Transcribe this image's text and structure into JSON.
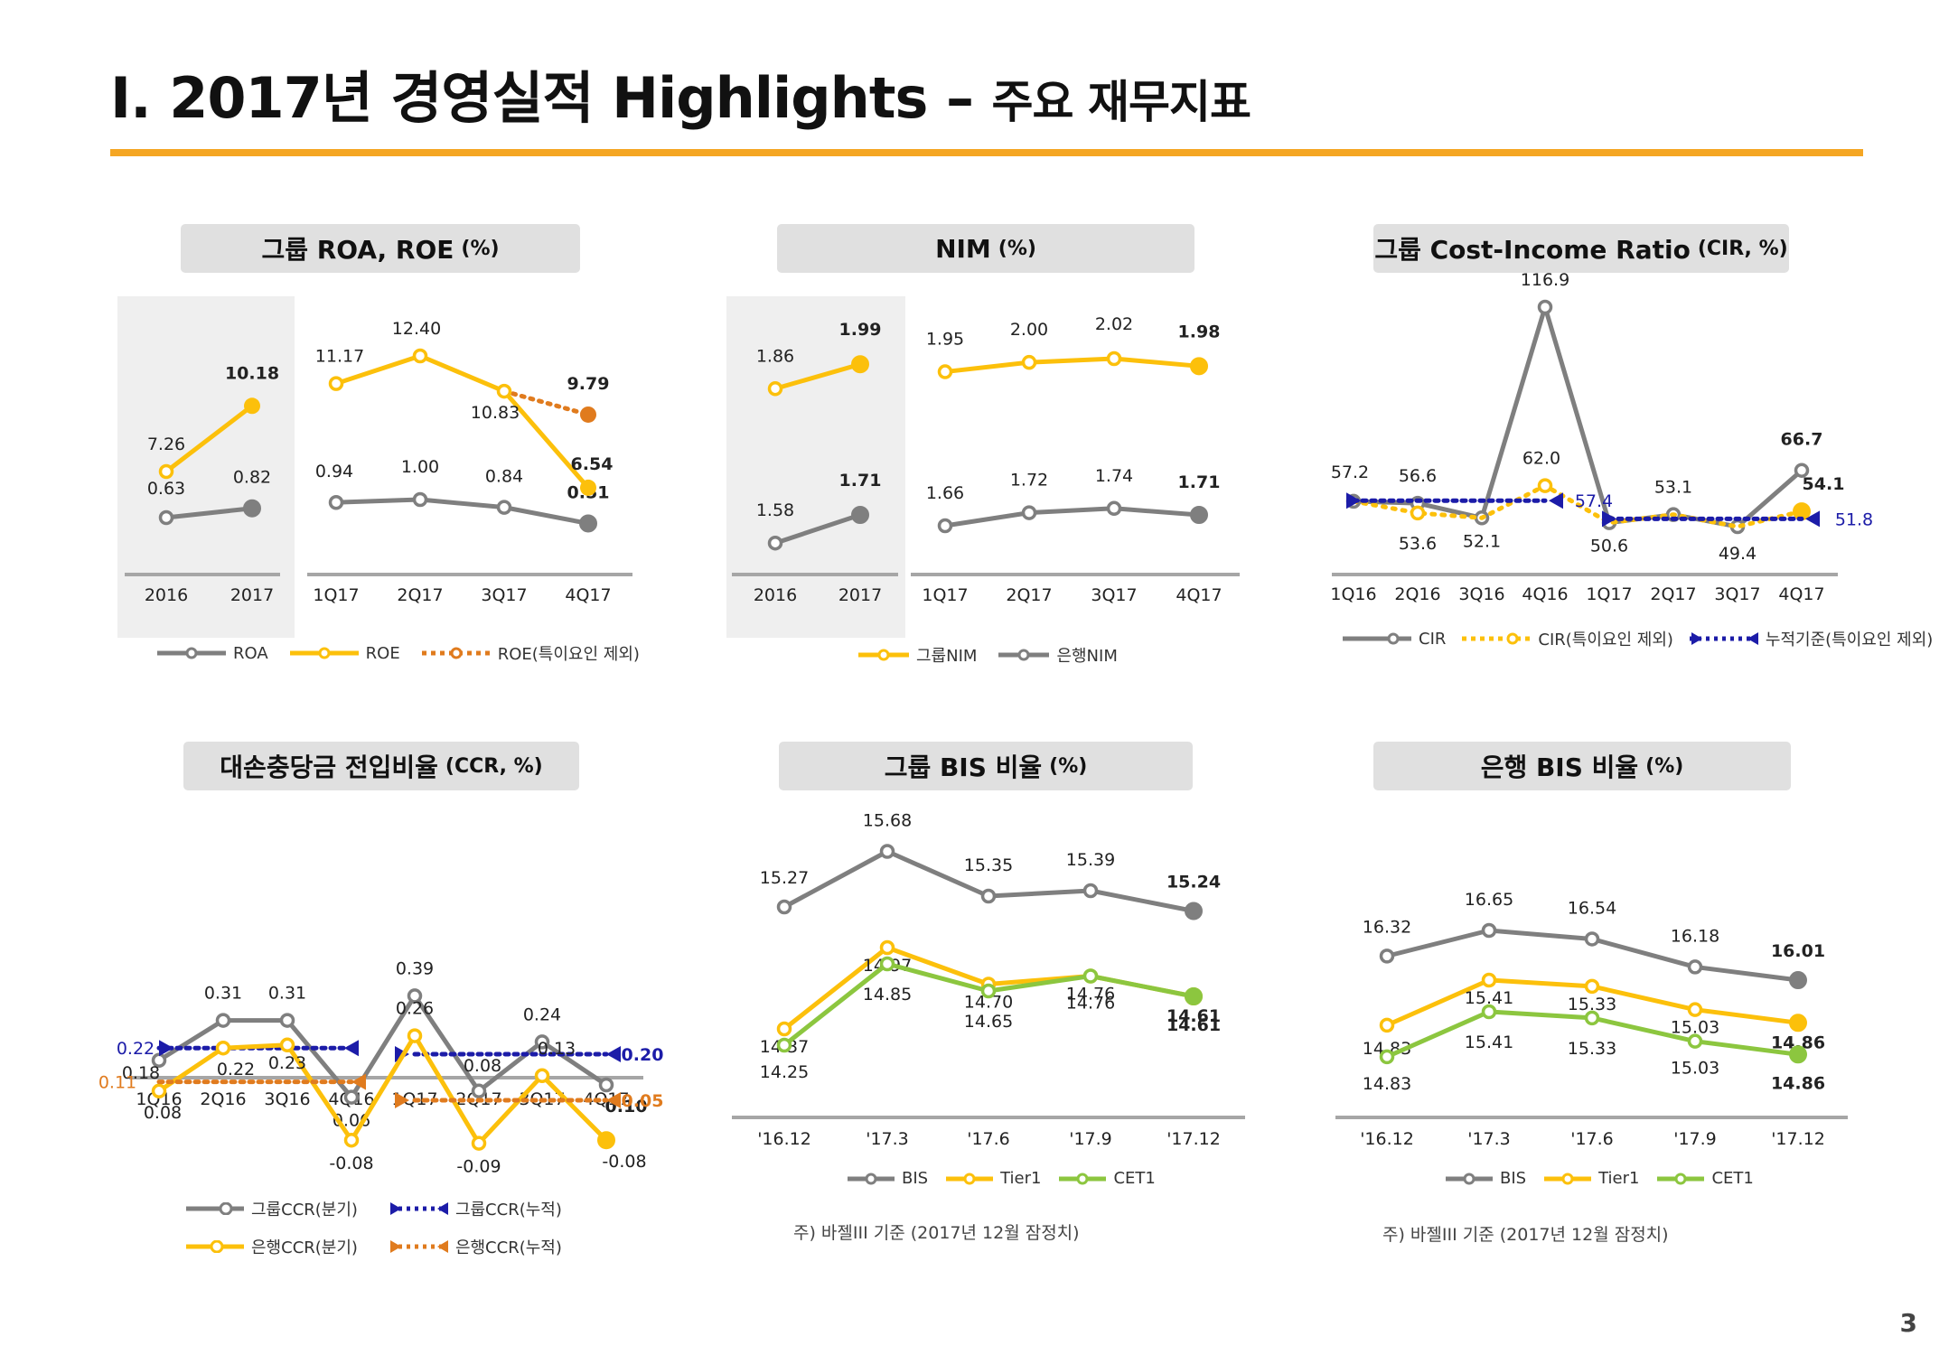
{
  "page": {
    "title_main": "Ⅰ. 2017년 경영실적 Highlights –",
    "title_sub": "주요 재무지표",
    "page_number": "3"
  },
  "colors": {
    "gray": "#7f7f7f",
    "yellow": "#fcc00b",
    "orange": "#e07b1e",
    "blue": "#1c1ca8",
    "green": "#8cc63f",
    "accent": "#f5a623"
  },
  "panels": {
    "roa_roe": {
      "title": "그룹 ROA, ROE",
      "unit": "(%)"
    },
    "nim": {
      "title": "NIM",
      "unit": "(%)"
    },
    "cir": {
      "title": "그룹 Cost-Income Ratio",
      "unit": "(CIR, %)"
    },
    "ccr": {
      "title": "대손충당금 전입비율",
      "unit": "(CCR, %)"
    },
    "group_bis": {
      "title": "그룹 BIS 비율",
      "unit": "(%)"
    },
    "bank_bis": {
      "title": "은행 BIS 비율",
      "unit": "(%)"
    }
  },
  "legends": {
    "roa_roe": [
      "ROA",
      "ROE",
      "ROE(특이요인 제외)"
    ],
    "nim": [
      "그룹NIM",
      "은행NIM"
    ],
    "cir": [
      "CIR",
      "CIR(특이요인 제외)",
      "누적기준(특이요인 제외)"
    ],
    "ccr": [
      "그룹CCR(분기)",
      "그룹CCR(누적)",
      "은행CCR(분기)",
      "은행CCR(누적)"
    ],
    "bis": [
      "BIS",
      "Tier1",
      "CET1"
    ]
  },
  "notes": {
    "group_bis": "주) 바젤III 기준 (2017년 12월 잠정치)",
    "bank_bis": "주) 바젤III 기준 (2017년 12월 잠정치)"
  },
  "chart_data": [
    {
      "id": "roa_roe",
      "type": "line",
      "categories": [
        "2016",
        "2017",
        "1Q17",
        "2Q17",
        "3Q17",
        "4Q17"
      ],
      "series": [
        {
          "name": "ROA",
          "values": [
            0.63,
            0.82,
            0.94,
            1.0,
            0.84,
            0.51
          ],
          "labels": [
            "0.63",
            "0.82",
            "0.94",
            "1.00",
            "0.84",
            "0.51"
          ]
        },
        {
          "name": "ROE",
          "values": [
            7.26,
            10.18,
            11.17,
            12.4,
            10.83,
            6.54
          ],
          "labels": [
            "7.26",
            "10.18",
            "11.17",
            "12.40",
            "10.83",
            "6.54"
          ]
        },
        {
          "name": "ROE(특이요인 제외)",
          "values": [
            null,
            null,
            null,
            null,
            10.83,
            9.79
          ],
          "labels": [
            "",
            "",
            "",
            "",
            "",
            "9.79"
          ]
        }
      ]
    },
    {
      "id": "nim",
      "type": "line",
      "categories": [
        "2016",
        "2017",
        "1Q17",
        "2Q17",
        "3Q17",
        "4Q17"
      ],
      "series": [
        {
          "name": "그룹NIM",
          "values": [
            1.86,
            1.99,
            1.95,
            2.0,
            2.02,
            1.98
          ],
          "labels": [
            "1.86",
            "1.99",
            "1.95",
            "2.00",
            "2.02",
            "1.98"
          ]
        },
        {
          "name": "은행NIM",
          "values": [
            1.58,
            1.71,
            1.66,
            1.72,
            1.74,
            1.71
          ],
          "labels": [
            "1.58",
            "1.71",
            "1.66",
            "1.72",
            "1.74",
            "1.71"
          ]
        }
      ]
    },
    {
      "id": "cir",
      "type": "line",
      "categories": [
        "1Q16",
        "2Q16",
        "3Q16",
        "4Q16",
        "1Q17",
        "2Q17",
        "3Q17",
        "4Q17"
      ],
      "series": [
        {
          "name": "CIR",
          "values": [
            57.2,
            56.6,
            52.1,
            116.9,
            50.6,
            53.1,
            49.4,
            66.7
          ],
          "labels": [
            "57.2",
            "56.6",
            "52.1",
            "116.9",
            "50.6",
            "53.1",
            "49.4",
            "66.7"
          ]
        },
        {
          "name": "CIR(특이요인 제외)",
          "values": [
            57.2,
            53.6,
            52.1,
            62.0,
            50.6,
            53.1,
            49.4,
            54.1
          ],
          "labels": [
            "",
            "53.6",
            "",
            "62.0",
            "",
            "",
            "",
            "54.1"
          ]
        },
        {
          "name": "누적기준(특이요인 제외)",
          "values": [
            57.4,
            57.4,
            57.4,
            57.4,
            51.8,
            51.8,
            51.8,
            51.8
          ],
          "labels": [
            "",
            "",
            "",
            "57.4",
            "",
            "",
            "",
            "51.8"
          ]
        }
      ]
    },
    {
      "id": "ccr",
      "type": "line",
      "categories": [
        "1Q16",
        "2Q16",
        "3Q16",
        "4Q16",
        "1Q17",
        "2Q17",
        "3Q17",
        "4Q17"
      ],
      "series": [
        {
          "name": "그룹CCR(분기)",
          "values": [
            0.18,
            0.31,
            0.31,
            0.06,
            0.39,
            0.08,
            0.24,
            0.1
          ],
          "labels": [
            "0.18",
            "0.31",
            "0.31",
            "0.06",
            "0.39",
            "0.08",
            "0.24",
            "0.10"
          ]
        },
        {
          "name": "그룹CCR(누적)",
          "values": [
            0.22,
            0.22,
            0.22,
            0.22,
            0.2,
            0.2,
            0.2,
            0.2
          ],
          "labels": [
            "0.22",
            "",
            "",
            "",
            "",
            "",
            "",
            "0.20"
          ]
        },
        {
          "name": "은행CCR(분기)",
          "values": [
            0.08,
            0.22,
            0.23,
            -0.08,
            0.26,
            -0.09,
            0.13,
            -0.08
          ],
          "labels": [
            "0.08",
            "0.22",
            "0.23",
            "-0.08",
            "0.26",
            "-0.09",
            "0.13",
            "-0.08"
          ]
        },
        {
          "name": "은행CCR(누적)",
          "values": [
            0.11,
            0.11,
            0.11,
            0.11,
            0.05,
            0.05,
            0.05,
            0.05
          ],
          "labels": [
            "0.11",
            "",
            "",
            "",
            "",
            "",
            "",
            "0.05"
          ]
        }
      ]
    },
    {
      "id": "group_bis",
      "type": "line",
      "categories": [
        "'16.12",
        "'17.3",
        "'17.6",
        "'17.9",
        "'17.12"
      ],
      "series": [
        {
          "name": "BIS",
          "values": [
            15.27,
            15.68,
            15.35,
            15.39,
            15.24
          ],
          "labels": [
            "15.27",
            "15.68",
            "15.35",
            "15.39",
            "15.24"
          ]
        },
        {
          "name": "Tier1",
          "values": [
            14.37,
            14.97,
            14.7,
            14.76,
            14.61
          ],
          "labels": [
            "14.37",
            "14.97",
            "14.70",
            "14.76",
            "14.61"
          ]
        },
        {
          "name": "CET1",
          "values": [
            14.25,
            14.85,
            14.65,
            14.76,
            14.61
          ],
          "labels": [
            "14.25",
            "14.85",
            "14.65",
            "14.76",
            "14.61"
          ]
        }
      ]
    },
    {
      "id": "bank_bis",
      "type": "line",
      "categories": [
        "'16.12",
        "'17.3",
        "'17.6",
        "'17.9",
        "'17.12"
      ],
      "series": [
        {
          "name": "BIS",
          "values": [
            16.32,
            16.65,
            16.54,
            16.18,
            16.01
          ],
          "labels": [
            "16.32",
            "16.65",
            "16.54",
            "16.18",
            "16.01"
          ]
        },
        {
          "name": "Tier1",
          "values": [
            14.83,
            15.41,
            15.33,
            15.03,
            14.86
          ],
          "labels": [
            "14.83",
            "15.41",
            "15.33",
            "15.03",
            "14.86"
          ]
        },
        {
          "name": "CET1",
          "values": [
            14.83,
            15.41,
            15.33,
            15.03,
            14.86
          ],
          "labels": [
            "14.83",
            "15.41",
            "15.33",
            "15.03",
            "14.86"
          ]
        }
      ]
    }
  ]
}
